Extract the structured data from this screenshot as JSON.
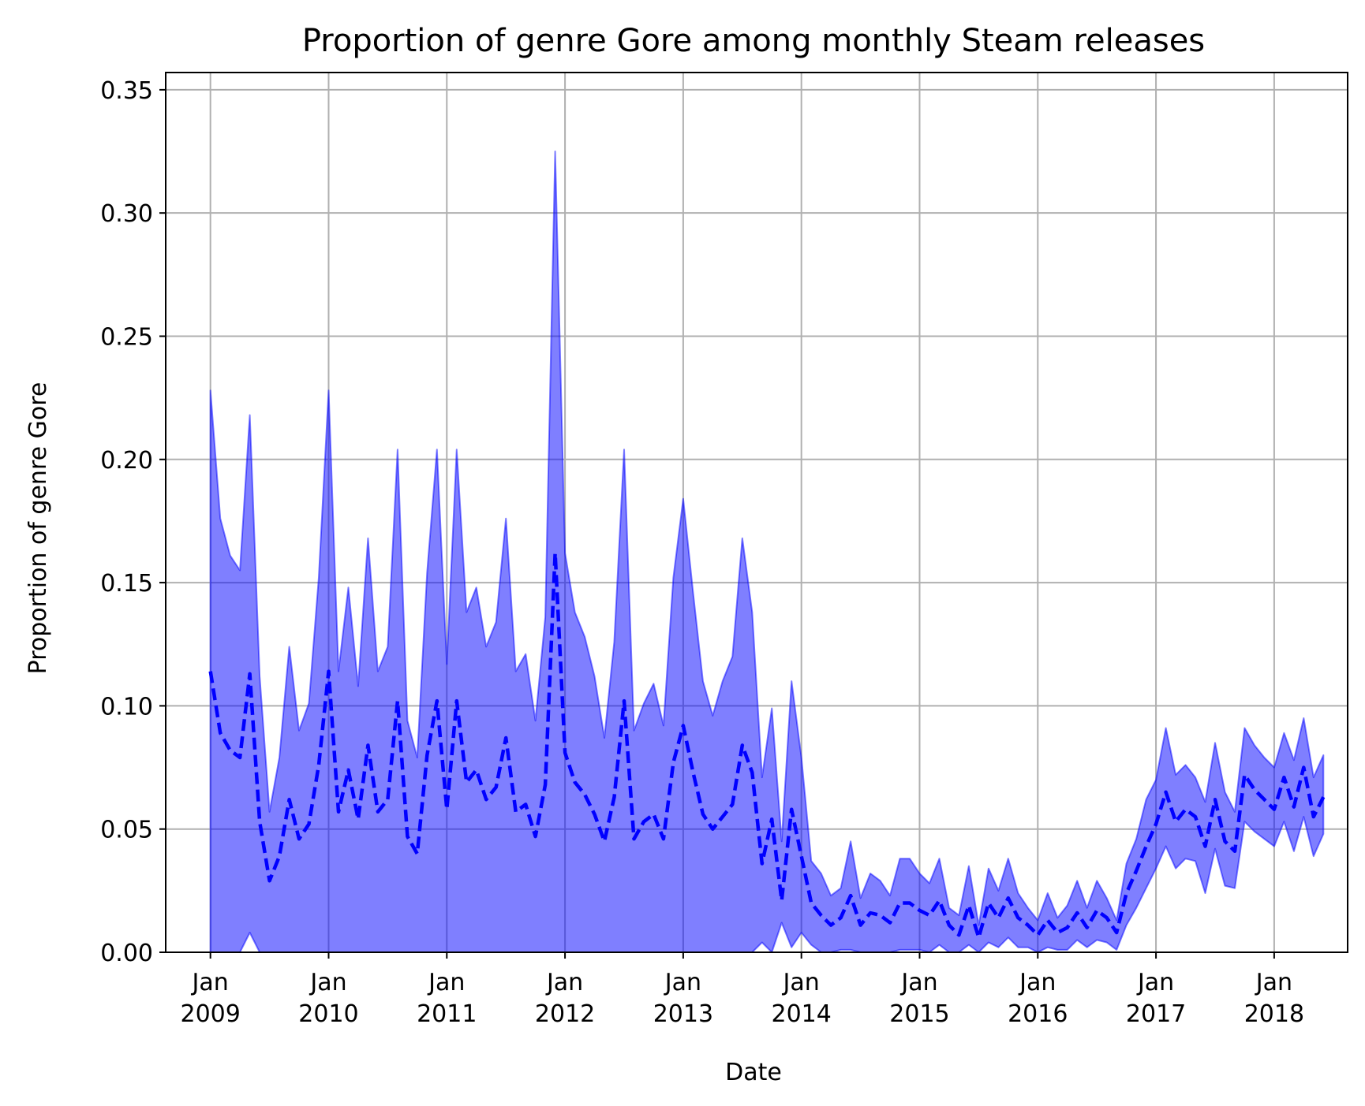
{
  "chart_data": {
    "type": "area",
    "title": "Proportion of genre Gore among monthly Steam releases",
    "xlabel": "Date",
    "ylabel": "Proportion of genre Gore",
    "x_start": "2009-01",
    "x_ticks": [
      {
        "date": "2009-01",
        "month": "Jan",
        "year": "2009"
      },
      {
        "date": "2010-01",
        "month": "Jan",
        "year": "2010"
      },
      {
        "date": "2011-01",
        "month": "Jan",
        "year": "2011"
      },
      {
        "date": "2012-01",
        "month": "Jan",
        "year": "2012"
      },
      {
        "date": "2013-01",
        "month": "Jan",
        "year": "2013"
      },
      {
        "date": "2014-01",
        "month": "Jan",
        "year": "2014"
      },
      {
        "date": "2015-01",
        "month": "Jan",
        "year": "2015"
      },
      {
        "date": "2016-01",
        "month": "Jan",
        "year": "2016"
      },
      {
        "date": "2017-01",
        "month": "Jan",
        "year": "2017"
      },
      {
        "date": "2018-01",
        "month": "Jan",
        "year": "2018"
      }
    ],
    "xlim": [
      "2008-08-15",
      "2018-08-15"
    ],
    "ylim": [
      0,
      0.357
    ],
    "y_ticks": [
      "0.00",
      "0.05",
      "0.10",
      "0.15",
      "0.20",
      "0.25",
      "0.30",
      "0.35"
    ],
    "grid": true,
    "colors": {
      "band": "#0000ff",
      "line": "#0000ff",
      "grid": "#b0b0b0"
    },
    "series": [
      {
        "style": "dashed-line",
        "values": [
          0.114,
          0.089,
          0.082,
          0.079,
          0.113,
          0.053,
          0.029,
          0.039,
          0.062,
          0.046,
          0.052,
          0.076,
          0.114,
          0.057,
          0.074,
          0.054,
          0.084,
          0.057,
          0.062,
          0.102,
          0.047,
          0.04,
          0.08,
          0.102,
          0.058,
          0.102,
          0.069,
          0.074,
          0.062,
          0.067,
          0.087,
          0.057,
          0.06,
          0.047,
          0.068,
          0.162,
          0.081,
          0.069,
          0.064,
          0.056,
          0.045,
          0.063,
          0.102,
          0.046,
          0.053,
          0.056,
          0.046,
          0.077,
          0.092,
          0.073,
          0.056,
          0.05,
          0.055,
          0.06,
          0.084,
          0.073,
          0.036,
          0.054,
          0.021,
          0.058,
          0.039,
          0.02,
          0.015,
          0.011,
          0.014,
          0.023,
          0.011,
          0.016,
          0.015,
          0.012,
          0.02,
          0.02,
          0.017,
          0.015,
          0.021,
          0.011,
          0.007,
          0.019,
          0.006,
          0.02,
          0.014,
          0.022,
          0.014,
          0.011,
          0.007,
          0.013,
          0.008,
          0.01,
          0.016,
          0.01,
          0.017,
          0.014,
          0.008,
          0.024,
          0.033,
          0.043,
          0.052,
          0.065,
          0.053,
          0.058,
          0.055,
          0.043,
          0.062,
          0.045,
          0.041,
          0.072,
          0.066,
          0.062,
          0.058,
          0.071,
          0.059,
          0.075,
          0.055,
          0.063
        ]
      },
      {
        "style": "band-upper",
        "values": [
          0.228,
          0.176,
          0.161,
          0.155,
          0.218,
          0.112,
          0.057,
          0.079,
          0.124,
          0.09,
          0.101,
          0.152,
          0.228,
          0.114,
          0.148,
          0.108,
          0.168,
          0.114,
          0.124,
          0.204,
          0.094,
          0.079,
          0.154,
          0.204,
          0.117,
          0.204,
          0.138,
          0.148,
          0.124,
          0.134,
          0.176,
          0.114,
          0.121,
          0.094,
          0.136,
          0.325,
          0.162,
          0.138,
          0.128,
          0.112,
          0.087,
          0.126,
          0.204,
          0.09,
          0.101,
          0.109,
          0.092,
          0.152,
          0.184,
          0.146,
          0.11,
          0.096,
          0.11,
          0.12,
          0.168,
          0.138,
          0.071,
          0.099,
          0.045,
          0.11,
          0.079,
          0.037,
          0.032,
          0.023,
          0.026,
          0.045,
          0.022,
          0.032,
          0.029,
          0.023,
          0.038,
          0.038,
          0.032,
          0.028,
          0.038,
          0.018,
          0.015,
          0.035,
          0.011,
          0.034,
          0.025,
          0.038,
          0.024,
          0.018,
          0.013,
          0.024,
          0.014,
          0.019,
          0.029,
          0.018,
          0.029,
          0.022,
          0.013,
          0.036,
          0.046,
          0.062,
          0.07,
          0.091,
          0.072,
          0.076,
          0.071,
          0.061,
          0.085,
          0.065,
          0.057,
          0.091,
          0.084,
          0.079,
          0.075,
          0.089,
          0.078,
          0.095,
          0.071,
          0.08
        ]
      },
      {
        "style": "band-lower",
        "values": [
          0.0,
          0.0,
          0.0,
          0.0,
          0.008,
          0.0,
          0.0,
          0.0,
          0.0,
          0.0,
          0.0,
          0.0,
          0.0,
          0.0,
          0.0,
          0.0,
          0.0,
          0.0,
          0.0,
          0.0,
          0.0,
          0.0,
          0.0,
          0.0,
          0.0,
          0.0,
          0.0,
          0.0,
          0.0,
          0.0,
          0.0,
          0.0,
          0.0,
          0.0,
          0.0,
          0.0,
          0.0,
          0.0,
          0.0,
          0.0,
          0.0,
          0.0,
          0.0,
          0.0,
          0.0,
          0.0,
          0.0,
          0.0,
          0.0,
          0.0,
          0.0,
          0.0,
          0.0,
          0.0,
          0.0,
          0.0,
          0.004,
          0.0,
          0.012,
          0.002,
          0.008,
          0.003,
          0.0,
          0.0,
          0.001,
          0.001,
          0.0,
          0.0,
          0.0,
          0.0,
          0.001,
          0.001,
          0.001,
          0.0,
          0.003,
          0.0,
          0.0,
          0.003,
          0.0,
          0.004,
          0.002,
          0.006,
          0.002,
          0.002,
          0.0,
          0.002,
          0.001,
          0.001,
          0.005,
          0.002,
          0.005,
          0.004,
          0.001,
          0.011,
          0.018,
          0.026,
          0.034,
          0.043,
          0.034,
          0.038,
          0.037,
          0.024,
          0.042,
          0.027,
          0.026,
          0.053,
          0.049,
          0.046,
          0.043,
          0.053,
          0.041,
          0.055,
          0.039,
          0.048
        ]
      }
    ]
  }
}
